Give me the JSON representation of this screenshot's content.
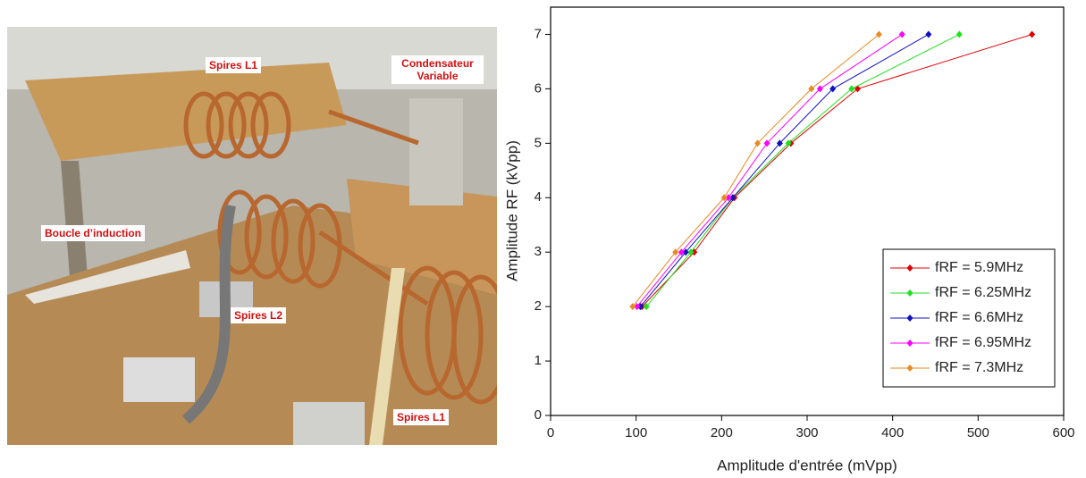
{
  "photo": {
    "labels": [
      "Spires L1",
      "Condensateur Variable",
      "Boucle d’induction",
      "Spires L2",
      "Spires L1"
    ]
  },
  "chart_data": {
    "type": "line",
    "x_label": "Amplitude d'entrée (mVpp)",
    "y_label": "Amplitude RF (kVpp)",
    "xlim": [
      0,
      600
    ],
    "xticks": [
      0,
      100,
      200,
      300,
      400,
      500,
      600
    ],
    "ylim": [
      0,
      7.5
    ],
    "yticks": [
      0,
      1,
      2,
      3,
      4,
      5,
      6,
      7
    ],
    "legend": "lower right",
    "series": [
      {
        "name": "fRF = 5.9MHz",
        "color": "#e00000",
        "x": [
          107,
          168,
          215,
          281,
          359,
          563
        ],
        "values": [
          2,
          3,
          4,
          5,
          6,
          7
        ]
      },
      {
        "name": "fRF = 6.25MHz",
        "color": "#20e020",
        "x": [
          112,
          164,
          213,
          278,
          352,
          478
        ],
        "values": [
          2,
          3,
          4,
          5,
          6,
          7
        ]
      },
      {
        "name": "fRF = 6.6MHz",
        "color": "#1010c0",
        "x": [
          105,
          158,
          213,
          268,
          330,
          442
        ],
        "values": [
          2,
          3,
          4,
          5,
          6,
          7
        ]
      },
      {
        "name": "fRF = 6.95MHz",
        "color": "#ff00ff",
        "x": [
          101,
          153,
          208,
          253,
          315,
          411
        ],
        "values": [
          2,
          3,
          4,
          5,
          6,
          7
        ]
      },
      {
        "name": "fRF = 7.3MHz",
        "color": "#e88a20",
        "x": [
          96,
          146,
          203,
          242,
          305,
          384
        ],
        "values": [
          2,
          3,
          4,
          5,
          6,
          7
        ]
      }
    ]
  }
}
